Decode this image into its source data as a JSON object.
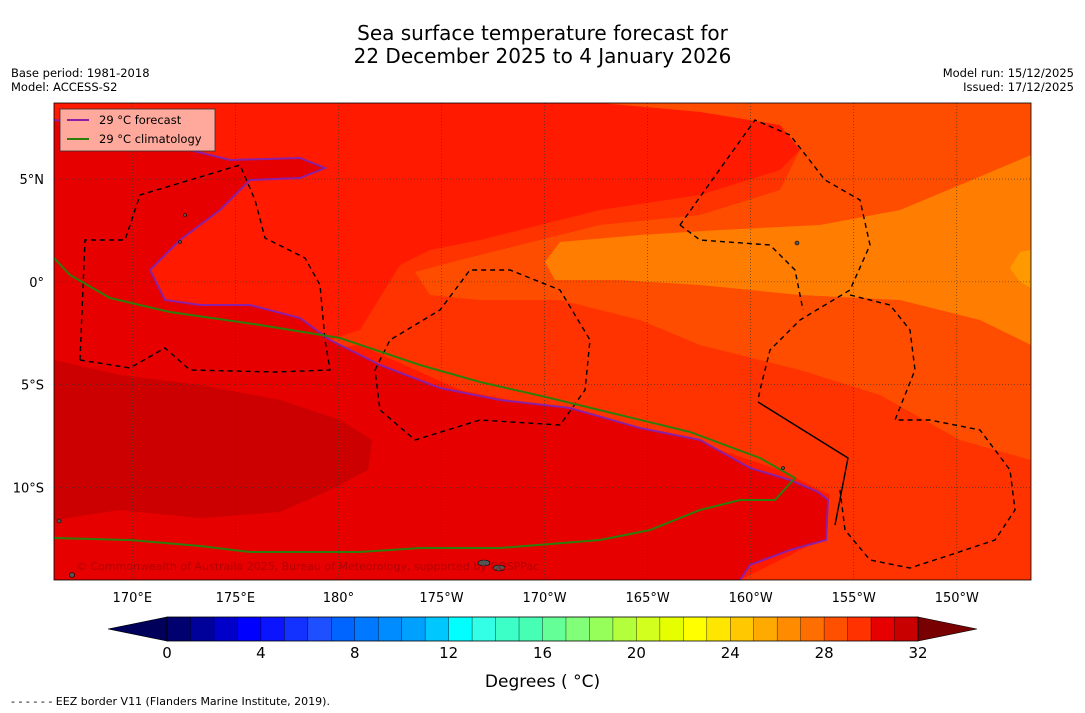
{
  "title": {
    "line1": "Sea surface temperature forecast for",
    "line2": "22 December 2025 to 4 January 2026"
  },
  "meta": {
    "base_period": "Base period: 1981-2018",
    "model": "Model: ACCESS-S2",
    "model_run": "Model run: 15/12/2025",
    "issued": "Issued: 17/12/2025"
  },
  "map": {
    "lon_labels": [
      "170°E",
      "175°E",
      "180°",
      "175°W",
      "170°W",
      "165°W",
      "160°W",
      "155°W",
      "150°W"
    ],
    "lat_labels": [
      "5°N",
      "0°",
      "5°S",
      "10°S"
    ],
    "extent": {
      "lon_min": 166.2,
      "lon_max": 213.6,
      "lat_min": -14.5,
      "lat_max": 8.7
    },
    "legend": [
      {
        "label": "29 °C  forecast",
        "color": "#8b1fa6"
      },
      {
        "label": "29 °C  climatology",
        "color": "#2e7d0a"
      }
    ],
    "copyright": "© Commonwealth of Australia 2025, Bureau of Meteorology, supported by COSPPac",
    "colors": {
      "sst_25_26": "#ff7d00",
      "sst_26_27": "#ff4d00",
      "sst_27_28": "#ff3300",
      "sst_28_29": "#ff1a00",
      "sst_29_30": "#e60000",
      "sst_30_31": "#cc0000",
      "sst_24_25": "#ff9900"
    }
  },
  "colorbar": {
    "ticks": [
      "0",
      "4",
      "8",
      "12",
      "16",
      "20",
      "24",
      "28",
      "32"
    ],
    "min": 0,
    "max": 32,
    "step": 1,
    "colors": [
      "#00006e",
      "#00009b",
      "#0000c8",
      "#0000ff",
      "#0a14ff",
      "#1432ff",
      "#1e50ff",
      "#0064ff",
      "#0078ff",
      "#008cff",
      "#00a0ff",
      "#00c8ff",
      "#00ffff",
      "#32ffe6",
      "#3cffc8",
      "#46ffb4",
      "#64ff96",
      "#82ff78",
      "#96ff5a",
      "#b4ff3c",
      "#d2ff1e",
      "#e6ff00",
      "#ffff00",
      "#ffe600",
      "#ffc800",
      "#ffaa00",
      "#ff8c00",
      "#ff6e00",
      "#ff5000",
      "#ff3200",
      "#e60000",
      "#c80000",
      "#960000"
    ],
    "under_color": "#00005a",
    "over_color": "#780000",
    "label": "Degrees ( °C)"
  },
  "footnote": "- -  - -  - - EEZ border V11 (Flanders Marine Institute, 2019)."
}
